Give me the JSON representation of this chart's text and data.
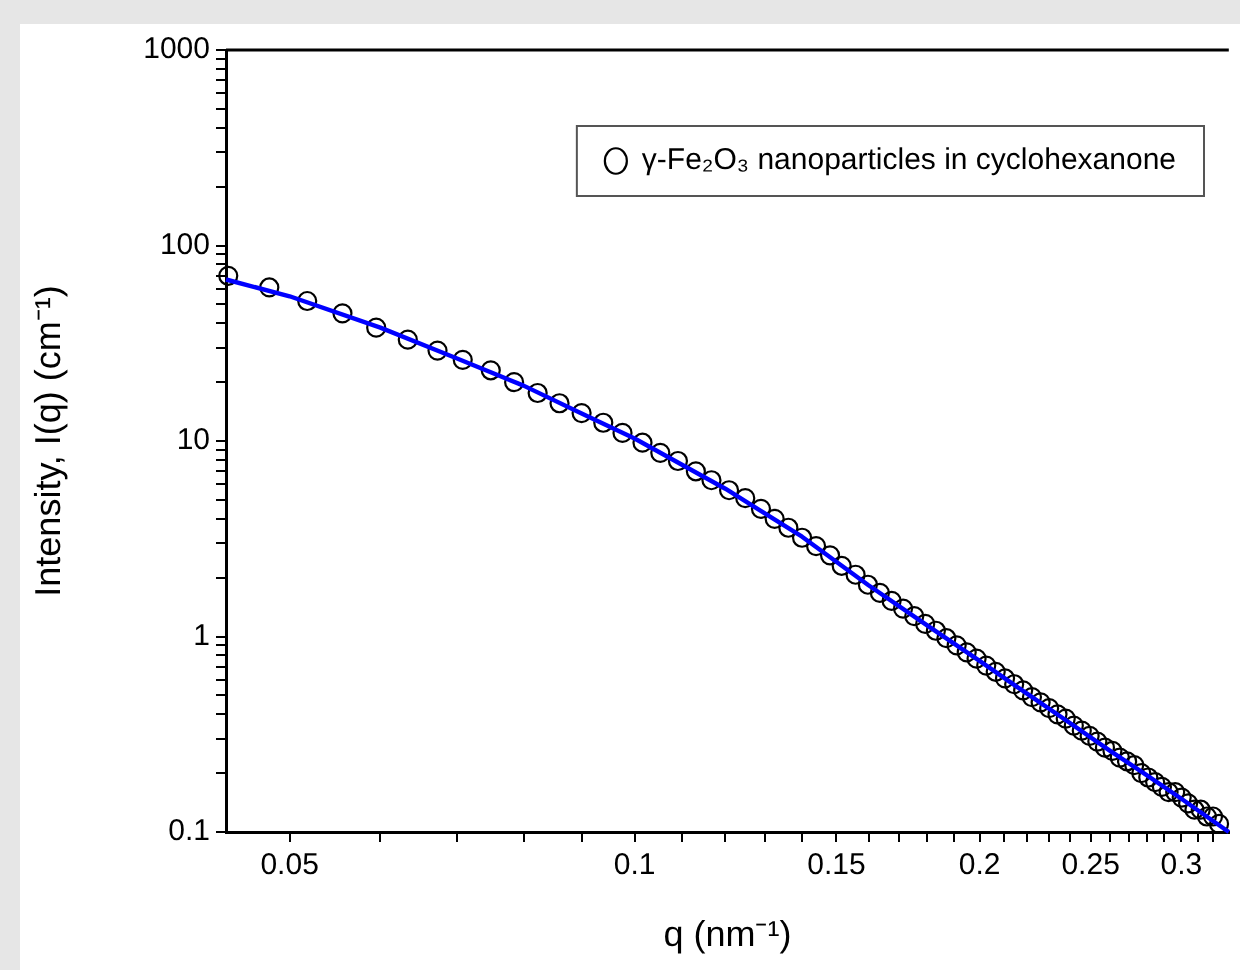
{
  "chart_data": {
    "type": "scatter",
    "xlabel": "q (nm⁻¹)",
    "ylabel": "Intensity, I(q) (cm⁻¹)",
    "log": "xy",
    "grid": false,
    "legend": "top right",
    "xlim": [
      0.044,
      0.33
    ],
    "ylim": [
      0.1,
      1000
    ],
    "xticks": [
      0.05,
      {
        "value": 0.06,
        "label": null
      },
      {
        "value": 0.07,
        "label": null
      },
      {
        "value": 0.08,
        "label": null
      },
      {
        "value": 0.09,
        "label": null
      },
      0.1,
      {
        "value": 0.11,
        "label": null
      },
      {
        "value": 0.12,
        "label": null
      },
      {
        "value": 0.13,
        "label": null
      },
      {
        "value": 0.14,
        "label": null
      },
      0.15,
      {
        "value": 0.16,
        "label": null
      },
      {
        "value": 0.17,
        "label": null
      },
      {
        "value": 0.18,
        "label": null
      },
      {
        "value": 0.19,
        "label": null
      },
      0.2,
      {
        "value": 0.21,
        "label": null
      },
      {
        "value": 0.22,
        "label": null
      },
      {
        "value": 0.23,
        "label": null
      },
      {
        "value": 0.24,
        "label": null
      },
      0.25,
      {
        "value": 0.26,
        "label": null
      },
      {
        "value": 0.27,
        "label": null
      },
      {
        "value": 0.28,
        "label": null
      },
      {
        "value": 0.29,
        "label": null
      },
      0.3,
      {
        "value": 0.31,
        "label": null
      },
      {
        "value": 0.32,
        "label": null
      }
    ],
    "yticks": [
      0.1,
      {
        "value": 0.2,
        "label": null
      },
      {
        "value": 0.3,
        "label": null
      },
      {
        "value": 0.4,
        "label": null
      },
      {
        "value": 0.5,
        "label": null
      },
      {
        "value": 0.6,
        "label": null
      },
      {
        "value": 0.7,
        "label": null
      },
      {
        "value": 0.8,
        "label": null
      },
      {
        "value": 0.9,
        "label": null
      },
      1,
      {
        "value": 2,
        "label": null
      },
      {
        "value": 3,
        "label": null
      },
      {
        "value": 4,
        "label": null
      },
      {
        "value": 5,
        "label": null
      },
      {
        "value": 6,
        "label": null
      },
      {
        "value": 7,
        "label": null
      },
      {
        "value": 8,
        "label": null
      },
      {
        "value": 9,
        "label": null
      },
      10,
      {
        "value": 20,
        "label": null
      },
      {
        "value": 30,
        "label": null
      },
      {
        "value": 40,
        "label": null
      },
      {
        "value": 50,
        "label": null
      },
      {
        "value": 60,
        "label": null
      },
      {
        "value": 70,
        "label": null
      },
      {
        "value": 80,
        "label": null
      },
      {
        "value": 90,
        "label": null
      },
      100,
      {
        "value": 200,
        "label": null
      },
      {
        "value": 300,
        "label": null
      },
      {
        "value": 400,
        "label": null
      },
      {
        "value": 500,
        "label": null
      },
      {
        "value": 600,
        "label": null
      },
      {
        "value": 700,
        "label": null
      },
      {
        "value": 800,
        "label": null
      },
      {
        "value": 900,
        "label": null
      },
      1000
    ],
    "series": [
      {
        "name": "γ-Fe₂O₃ nanoparticles in cyclohexanone",
        "marker": "circle",
        "color": "#000000",
        "x": [
          0.0442,
          0.048,
          0.0518,
          0.0556,
          0.0595,
          0.0634,
          0.0673,
          0.0708,
          0.0749,
          0.0785,
          0.0823,
          0.086,
          0.0899,
          0.0939,
          0.0976,
          0.1016,
          0.1053,
          0.1091,
          0.1131,
          0.1167,
          0.1209,
          0.1249,
          0.1289,
          0.1325,
          0.1362,
          0.14,
          0.144,
          0.1481,
          0.1516,
          0.1559,
          0.1598,
          0.1637,
          0.1676,
          0.1715,
          0.1754,
          0.1793,
          0.1832,
          0.1871,
          0.191,
          0.1949,
          0.1988,
          0.2027,
          0.2066,
          0.2105,
          0.2144,
          0.2183,
          0.2222,
          0.2261,
          0.23,
          0.2339,
          0.2378,
          0.2417,
          0.2456,
          0.2495,
          0.2534,
          0.2573,
          0.2612,
          0.2651,
          0.269,
          0.2729,
          0.2768,
          0.2807,
          0.2846,
          0.2885,
          0.2924,
          0.2963,
          0.3002,
          0.3041,
          0.308,
          0.3119,
          0.3158,
          0.3197,
          0.3236
        ],
        "values": [
          70,
          61,
          52,
          45,
          38,
          33,
          29,
          26,
          23,
          20,
          17.6,
          15.6,
          13.9,
          12.4,
          11,
          9.8,
          8.7,
          7.9,
          7,
          6.3,
          5.6,
          5.1,
          4.5,
          4,
          3.6,
          3.2,
          2.9,
          2.6,
          2.3,
          2.07,
          1.84,
          1.67,
          1.52,
          1.39,
          1.27,
          1.16,
          1.07,
          0.98,
          0.9,
          0.83,
          0.77,
          0.71,
          0.66,
          0.61,
          0.57,
          0.53,
          0.49,
          0.46,
          0.43,
          0.4,
          0.38,
          0.35,
          0.33,
          0.31,
          0.29,
          0.27,
          0.26,
          0.24,
          0.23,
          0.22,
          0.2,
          0.19,
          0.18,
          0.17,
          0.16,
          0.16,
          0.15,
          0.14,
          0.13,
          0.13,
          0.12,
          0.12,
          0.11
        ]
      },
      {
        "type": "line",
        "marker": "none",
        "line_style": "solid",
        "color": "#0000ff",
        "x": [
          0.044,
          0.05,
          0.06,
          0.07,
          0.08,
          0.09,
          0.1,
          0.12,
          0.14,
          0.16,
          0.18,
          0.2,
          0.22,
          0.24,
          0.26,
          0.28,
          0.3,
          0.33
        ],
        "values": [
          67,
          55,
          38,
          26.4,
          19.2,
          13.8,
          10.3,
          5.7,
          3.24,
          1.83,
          1.14,
          0.75,
          0.51,
          0.36,
          0.26,
          0.195,
          0.148,
          0.1
        ]
      }
    ]
  }
}
